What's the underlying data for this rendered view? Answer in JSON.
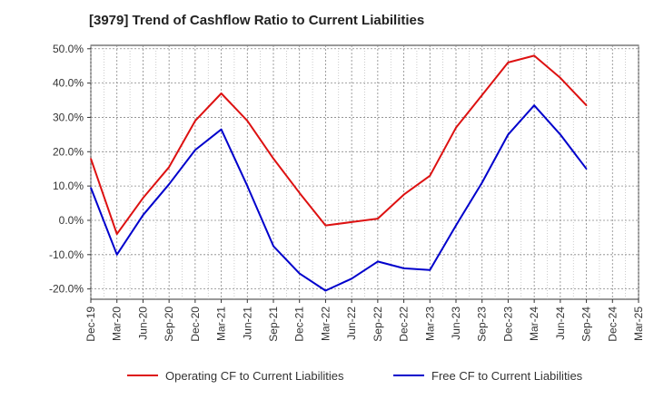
{
  "chart_data": {
    "type": "line",
    "title": "[3979]  Trend of Cashflow Ratio to Current Liabilities",
    "xlabel": "",
    "ylabel": "",
    "categories": [
      "Dec-19",
      "Mar-20",
      "Jun-20",
      "Sep-20",
      "Dec-20",
      "Mar-21",
      "Jun-21",
      "Sep-21",
      "Dec-21",
      "Mar-22",
      "Jun-22",
      "Sep-22",
      "Dec-22",
      "Mar-23",
      "Jun-23",
      "Sep-23",
      "Dec-23",
      "Mar-24",
      "Jun-24",
      "Sep-24",
      "Dec-24",
      "Mar-25"
    ],
    "y_tick_labels": [
      "50.0%",
      "40.0%",
      "30.0%",
      "20.0%",
      "10.0%",
      "0.0%",
      "-10.0%",
      "-20.0%"
    ],
    "y_ticks": [
      50,
      40,
      30,
      20,
      10,
      0,
      -10,
      -20
    ],
    "ylim": [
      -23,
      51
    ],
    "grid": true,
    "legend_position": "bottom",
    "series": [
      {
        "name": "Operating CF to Current Liabilities",
        "color": "#dd1111",
        "values": [
          18.0,
          -4.0,
          6.5,
          15.5,
          29.0,
          37.0,
          29.0,
          18.0,
          8.0,
          -1.5,
          -0.5,
          0.5,
          7.5,
          13.0,
          27.0,
          36.5,
          46.0,
          48.0,
          41.5,
          33.5,
          null,
          null
        ]
      },
      {
        "name": "Free CF to Current Liabilities",
        "color": "#0000cc",
        "values": [
          9.5,
          -10.0,
          1.5,
          10.5,
          20.5,
          26.5,
          10.0,
          -7.5,
          -15.5,
          -20.5,
          -17.0,
          -12.0,
          -14.0,
          -14.5,
          -1.5,
          11.0,
          25.0,
          33.5,
          25.0,
          15.0,
          null,
          null
        ]
      }
    ]
  }
}
